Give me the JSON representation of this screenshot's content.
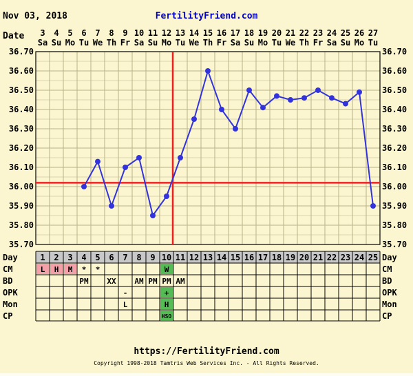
{
  "header": {
    "date": "Nov 03, 2018",
    "site": "FertilityFriend.com"
  },
  "footer": {
    "url": "https://FertilityFriend.com",
    "copyright": "Copyright 1998-2018 Tamtris Web Services Inc. - All Rights Reserved."
  },
  "chart_data": {
    "type": "line",
    "row_label_date": "Date",
    "row_label_day": "Day",
    "dates": [
      "3",
      "4",
      "5",
      "6",
      "7",
      "8",
      "9",
      "10",
      "11",
      "12",
      "13",
      "14",
      "15",
      "16",
      "17",
      "18",
      "19",
      "20",
      "21",
      "22",
      "23",
      "24",
      "25",
      "26",
      "27"
    ],
    "weekdays": [
      "Sa",
      "Su",
      "Mo",
      "Tu",
      "We",
      "Th",
      "Fr",
      "Sa",
      "Su",
      "Mo",
      "Tu",
      "We",
      "Th",
      "Fr",
      "Sa",
      "Su",
      "Mo",
      "Tu",
      "We",
      "Th",
      "Fr",
      "Sa",
      "Su",
      "Mo",
      "Tu"
    ],
    "cycle_days": [
      "1",
      "2",
      "3",
      "4",
      "5",
      "6",
      "7",
      "8",
      "9",
      "10",
      "11",
      "12",
      "13",
      "14",
      "15",
      "16",
      "17",
      "18",
      "19",
      "20",
      "21",
      "22",
      "23",
      "24",
      "25"
    ],
    "y_ticks": [
      "36.70",
      "36.60",
      "36.50",
      "36.40",
      "36.30",
      "36.20",
      "36.10",
      "36.00",
      "35.90",
      "35.80",
      "35.70"
    ],
    "ylim": [
      35.7,
      36.7
    ],
    "coverline": 36.02,
    "ovulation_day": 10,
    "series": [
      {
        "color": "#3333dd",
        "values": [
          null,
          null,
          null,
          36.0,
          36.13,
          35.9,
          36.1,
          36.15,
          35.85,
          35.95,
          36.15,
          36.35,
          36.6,
          36.4,
          36.3,
          36.5,
          36.41,
          36.47,
          36.45,
          36.46,
          36.5,
          36.46,
          36.43,
          36.49,
          35.9
        ]
      }
    ],
    "rows": [
      {
        "label": "CM",
        "cells": [
          {
            "day": 1,
            "text": "L",
            "bg": "#f4a0a8"
          },
          {
            "day": 2,
            "text": "H",
            "bg": "#f4a0a8"
          },
          {
            "day": 3,
            "text": "M",
            "bg": "#f4a0a8"
          },
          {
            "day": 4,
            "text": "*",
            "bg": ""
          },
          {
            "day": 5,
            "text": "*",
            "bg": ""
          },
          {
            "day": 10,
            "text": "W",
            "bg": "#55bb55"
          }
        ]
      },
      {
        "label": "BD",
        "cells": [
          {
            "day": 4,
            "text": "PM",
            "bg": ""
          },
          {
            "day": 6,
            "text": "XX",
            "bg": ""
          },
          {
            "day": 8,
            "text": "AM",
            "bg": ""
          },
          {
            "day": 9,
            "text": "PM",
            "bg": ""
          },
          {
            "day": 10,
            "text": "PM",
            "bg": ""
          },
          {
            "day": 11,
            "text": "AM",
            "bg": ""
          }
        ]
      },
      {
        "label": "OPK",
        "cells": [
          {
            "day": 7,
            "text": "-",
            "bg": ""
          },
          {
            "day": 10,
            "text": "+",
            "bg": "#55bb55"
          }
        ]
      },
      {
        "label": "Mon",
        "cells": [
          {
            "day": 7,
            "text": "L",
            "bg": ""
          },
          {
            "day": 10,
            "text": "H",
            "bg": "#55bb55"
          }
        ]
      },
      {
        "label": "CP",
        "cells": [
          {
            "day": 10,
            "text": "HSO",
            "bg": "#55bb55"
          }
        ]
      }
    ],
    "colors": {
      "coverline": "#ee2222",
      "ovulation_line": "#ee2222",
      "day_row_bg": "#c8c8c8",
      "grid": "#b8b28a",
      "plot_bg": "#fbf6cf"
    }
  }
}
